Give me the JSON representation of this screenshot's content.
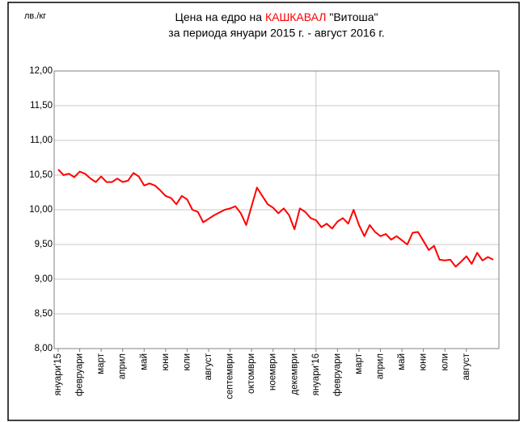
{
  "chart_data": {
    "type": "line",
    "unit_label": "лв./кг",
    "title": {
      "prefix": "Цена на едро на",
      "highlight": "КАШКАВАЛ",
      "suffix": "\"Витоша\"",
      "highlight_color": "#ff0000"
    },
    "subtitle": "за периода януари 2015 г. - август 2016 г.",
    "categories": [
      "януари'15",
      null,
      null,
      null,
      "февруари",
      null,
      null,
      null,
      "март",
      null,
      null,
      null,
      "април",
      null,
      null,
      null,
      "май",
      null,
      null,
      null,
      "юни",
      null,
      null,
      null,
      "юли",
      null,
      null,
      null,
      "август",
      null,
      null,
      null,
      "септември",
      null,
      null,
      null,
      "октомври",
      null,
      null,
      null,
      "ноември",
      null,
      null,
      null,
      "декември",
      null,
      null,
      null,
      "януари'16",
      null,
      null,
      null,
      "февруари",
      null,
      null,
      null,
      "март",
      null,
      null,
      null,
      "април",
      null,
      null,
      null,
      "май",
      null,
      null,
      null,
      "юни",
      null,
      null,
      null,
      "юли",
      null,
      null,
      null,
      "август",
      null,
      null,
      null,
      null,
      null
    ],
    "series": [
      {
        "name": "Цена",
        "color": "#ff0000",
        "values": [
          10.58,
          10.5,
          10.52,
          10.47,
          10.55,
          10.52,
          10.45,
          10.4,
          10.48,
          10.4,
          10.4,
          10.45,
          10.4,
          10.42,
          10.53,
          10.48,
          10.35,
          10.38,
          10.35,
          10.28,
          10.2,
          10.17,
          10.08,
          10.2,
          10.15,
          10.0,
          9.97,
          9.82,
          9.87,
          9.92,
          9.96,
          10.0,
          10.02,
          10.05,
          9.95,
          9.78,
          10.05,
          10.32,
          10.2,
          10.08,
          10.03,
          9.95,
          10.02,
          9.92,
          9.72,
          10.02,
          9.97,
          9.88,
          9.85,
          9.75,
          9.8,
          9.73,
          9.83,
          9.88,
          9.8,
          10.0,
          9.78,
          9.62,
          9.78,
          9.68,
          9.62,
          9.65,
          9.57,
          9.62,
          9.56,
          9.5,
          9.67,
          9.68,
          9.55,
          9.42,
          9.48,
          9.28,
          9.27,
          9.28,
          9.18,
          9.25,
          9.33,
          9.22,
          9.38,
          9.27,
          9.32,
          9.28
        ]
      }
    ],
    "ylim": [
      8,
      12
    ],
    "yticks": [
      {
        "value": 8,
        "label": "8,00"
      },
      {
        "value": 8.5,
        "label": "8,50"
      },
      {
        "value": 9,
        "label": "9,00"
      },
      {
        "value": 9.5,
        "label": "9,50"
      },
      {
        "value": 10,
        "label": "10,00"
      },
      {
        "value": 10.5,
        "label": "10,50"
      },
      {
        "value": 11,
        "label": "11,00"
      },
      {
        "value": 11.5,
        "label": "11,50"
      },
      {
        "value": 12,
        "label": "12,00"
      }
    ],
    "grid": true,
    "xgrid_category": 48
  }
}
